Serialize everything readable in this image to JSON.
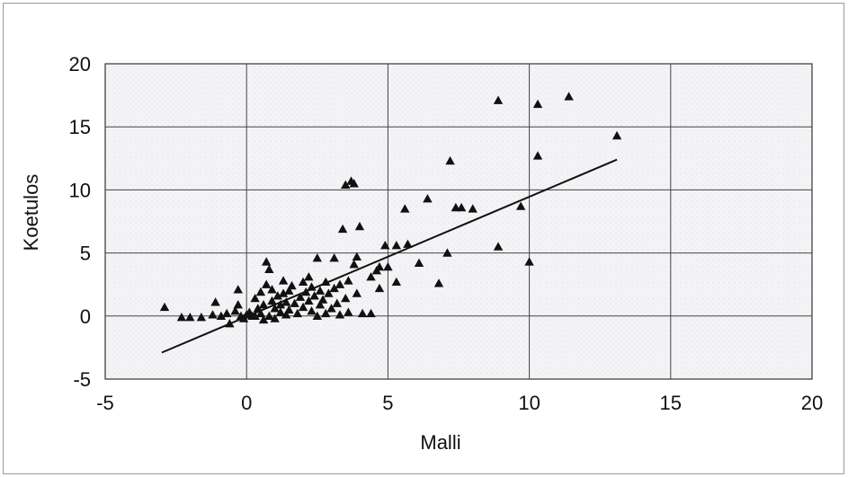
{
  "chart_data": {
    "type": "scatter",
    "title": "",
    "xlabel": "Malli",
    "ylabel": "Koetulos",
    "xlim": [
      -5,
      20
    ],
    "ylim": [
      -5,
      20
    ],
    "xticks": [
      -5,
      0,
      5,
      10,
      15,
      20
    ],
    "yticks": [
      -5,
      0,
      5,
      10,
      15,
      20
    ],
    "grid": true,
    "legend": "none",
    "marker": "triangle",
    "marker_color": "#111111",
    "series": [
      {
        "points": [
          [
            -2.9,
            0.7
          ],
          [
            -2.3,
            -0.1
          ],
          [
            -2.0,
            -0.1
          ],
          [
            -1.6,
            -0.1
          ],
          [
            -1.1,
            1.1
          ],
          [
            -1.2,
            0.1
          ],
          [
            -0.9,
            0.0
          ],
          [
            -0.7,
            0.2
          ],
          [
            -0.6,
            -0.6
          ],
          [
            -0.4,
            0.4
          ],
          [
            -0.3,
            0.9
          ],
          [
            -0.3,
            2.1
          ],
          [
            -0.2,
            0.0
          ],
          [
            -0.1,
            -0.2
          ],
          [
            0.0,
            0.1
          ],
          [
            0.1,
            0.3
          ],
          [
            0.2,
            0.0
          ],
          [
            0.3,
            1.4
          ],
          [
            0.3,
            0.0
          ],
          [
            0.4,
            0.6
          ],
          [
            0.5,
            0.2
          ],
          [
            0.5,
            1.9
          ],
          [
            0.6,
            -0.3
          ],
          [
            0.6,
            0.9
          ],
          [
            0.7,
            4.3
          ],
          [
            0.7,
            2.5
          ],
          [
            0.8,
            3.7
          ],
          [
            0.8,
            0.0
          ],
          [
            0.9,
            1.2
          ],
          [
            0.9,
            2.1
          ],
          [
            1.0,
            -0.2
          ],
          [
            1.0,
            0.6
          ],
          [
            1.1,
            1.6
          ],
          [
            1.2,
            0.3
          ],
          [
            1.2,
            0.9
          ],
          [
            1.3,
            2.8
          ],
          [
            1.3,
            1.8
          ],
          [
            1.4,
            0.1
          ],
          [
            1.4,
            1.1
          ],
          [
            1.5,
            2.0
          ],
          [
            1.5,
            0.5
          ],
          [
            1.6,
            2.4
          ],
          [
            1.7,
            1.0
          ],
          [
            1.8,
            0.2
          ],
          [
            1.9,
            1.5
          ],
          [
            2.0,
            2.7
          ],
          [
            2.0,
            0.7
          ],
          [
            2.1,
            1.9
          ],
          [
            2.2,
            3.1
          ],
          [
            2.2,
            1.2
          ],
          [
            2.3,
            0.4
          ],
          [
            2.3,
            2.3
          ],
          [
            2.4,
            1.6
          ],
          [
            2.5,
            0.0
          ],
          [
            2.5,
            4.6
          ],
          [
            2.6,
            0.9
          ],
          [
            2.6,
            2.0
          ],
          [
            2.7,
            1.3
          ],
          [
            2.8,
            2.7
          ],
          [
            2.8,
            0.2
          ],
          [
            2.9,
            1.8
          ],
          [
            3.0,
            0.6
          ],
          [
            3.1,
            4.6
          ],
          [
            3.1,
            2.2
          ],
          [
            3.2,
            1.0
          ],
          [
            3.3,
            0.1
          ],
          [
            3.3,
            2.5
          ],
          [
            3.4,
            6.9
          ],
          [
            3.5,
            1.4
          ],
          [
            3.5,
            10.4
          ],
          [
            3.6,
            2.8
          ],
          [
            3.6,
            0.3
          ],
          [
            3.7,
            10.7
          ],
          [
            3.8,
            10.5
          ],
          [
            3.8,
            4.1
          ],
          [
            3.9,
            4.7
          ],
          [
            3.9,
            1.8
          ],
          [
            4.0,
            7.1
          ],
          [
            4.1,
            0.2
          ],
          [
            4.4,
            0.2
          ],
          [
            4.4,
            3.1
          ],
          [
            4.6,
            3.6
          ],
          [
            4.7,
            2.2
          ],
          [
            4.7,
            3.9
          ],
          [
            4.9,
            5.6
          ],
          [
            5.0,
            3.9
          ],
          [
            5.3,
            5.6
          ],
          [
            5.3,
            2.7
          ],
          [
            5.6,
            8.5
          ],
          [
            5.7,
            5.7
          ],
          [
            6.1,
            4.2
          ],
          [
            6.4,
            9.3
          ],
          [
            6.8,
            2.6
          ],
          [
            7.1,
            5.0
          ],
          [
            7.2,
            12.3
          ],
          [
            7.4,
            8.6
          ],
          [
            7.6,
            8.6
          ],
          [
            8.0,
            8.5
          ],
          [
            8.9,
            17.1
          ],
          [
            8.9,
            5.5
          ],
          [
            9.7,
            8.7
          ],
          [
            10.0,
            4.3
          ],
          [
            10.3,
            16.8
          ],
          [
            10.3,
            12.7
          ],
          [
            11.4,
            17.4
          ],
          [
            13.1,
            14.3
          ]
        ]
      }
    ],
    "trendline": {
      "x": [
        -3.0,
        13.1
      ],
      "y": [
        -2.9,
        12.4
      ]
    }
  }
}
